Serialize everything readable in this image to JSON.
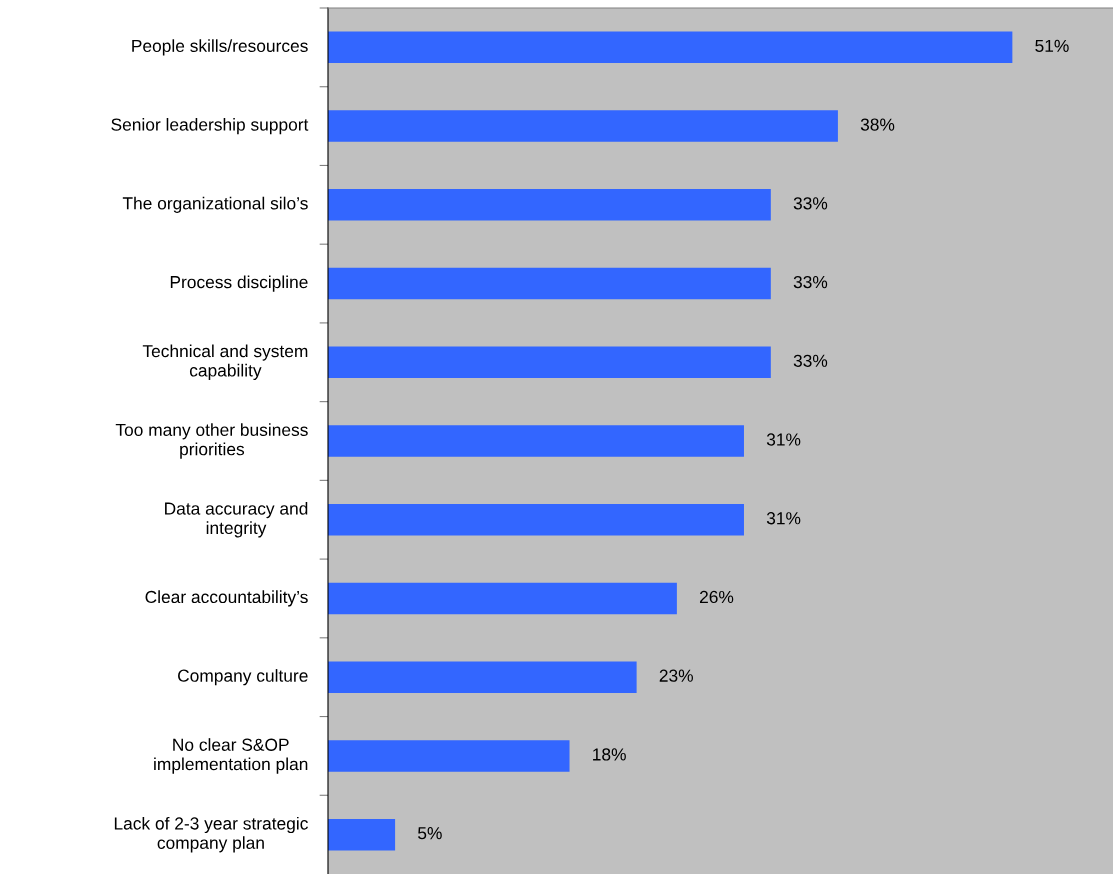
{
  "chart_data": {
    "type": "bar",
    "orientation": "horizontal",
    "categories": [
      "People skills/resources",
      "Senior leadership support",
      "The organizational silo’s",
      "Process discipline",
      "Technical and system\ncapability",
      "Too many other business\npriorities",
      "Data accuracy and\nintegrity",
      "Clear accountability’s",
      "Company culture",
      "No clear S&OP\nimplementation plan",
      "Lack of 2-3 year strategic\ncompany plan"
    ],
    "values": [
      51,
      38,
      33,
      33,
      33,
      31,
      31,
      26,
      23,
      18,
      5
    ],
    "value_labels": [
      "51%",
      "38%",
      "33%",
      "33%",
      "33%",
      "31%",
      "31%",
      "26%",
      "23%",
      "18%",
      "5%"
    ],
    "color": "#3366ff",
    "xlim": [
      0,
      58.5
    ],
    "tick_labels": "y",
    "grid": false,
    "legend": false
  }
}
